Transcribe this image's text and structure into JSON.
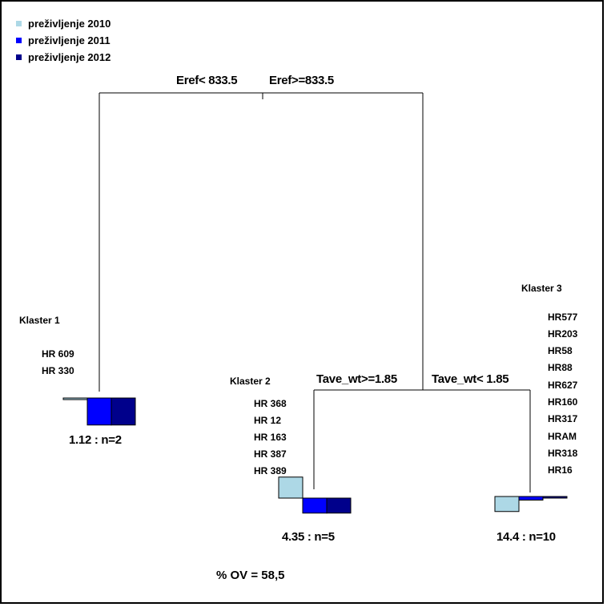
{
  "legend": [
    {
      "label": "preživljenje 2010",
      "color": "#add8e6"
    },
    {
      "label": "preživljenje 2011",
      "color": "#0000ff"
    },
    {
      "label": "preživljenje 2012",
      "color": "#00008b"
    }
  ],
  "root_split": {
    "left": "Eref< 833.5",
    "right": "Eref>=833.5"
  },
  "right_split": {
    "left": "Tave_wt>=1.85",
    "right": "Tave_wt< 1.85"
  },
  "clusters": [
    {
      "name": "Klaster 1",
      "members": [
        "HR 609",
        "HR 330"
      ],
      "leaf_label": "1.12 : n=2",
      "bars": [
        0.0,
        0.45,
        0.45
      ]
    },
    {
      "name": "Klaster 2",
      "members": [
        "HR 368",
        "HR 12",
        "HR 163",
        "HR 387",
        "HR 389"
      ],
      "leaf_label": "4.35 : n=5",
      "bars": [
        -0.35,
        0.25,
        0.25
      ]
    },
    {
      "name": "Klaster 3",
      "members": [
        "HR577",
        "HR203",
        "HR58",
        "HR88",
        "HR627",
        "HR160",
        "HR317",
        "HRAM",
        "HR318",
        "HR16"
      ],
      "leaf_label": "14.4 : n=10",
      "bars": [
        0.25,
        0.06,
        0.02
      ]
    }
  ],
  "footer": "% OV = 58,5"
}
